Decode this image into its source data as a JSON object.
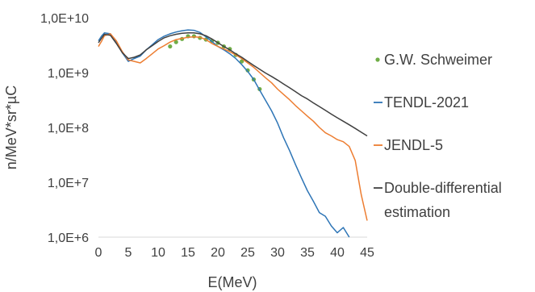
{
  "chart_data": {
    "type": "line",
    "title": "",
    "xlabel": "E(MeV)",
    "ylabel": "n/MeV*sr*µC",
    "xlim": [
      0,
      45
    ],
    "ylim": [
      1000000,
      10000000000
    ],
    "y_scale": "log",
    "grid": false,
    "legend_position": "right",
    "x_ticks": [
      0,
      5,
      10,
      15,
      20,
      25,
      30,
      35,
      40,
      45
    ],
    "x_tick_labels": [
      "0",
      "5",
      "10",
      "15",
      "20",
      "25",
      "30",
      "35",
      "40",
      "45"
    ],
    "y_ticks": [
      1000000,
      10000000,
      100000000,
      1000000000,
      10000000000
    ],
    "y_tick_labels": [
      "1,0E+6",
      "1,0E+7",
      "1,0E+8",
      "1,0E+9",
      "1,0E+10"
    ],
    "series": [
      {
        "name": "G.W. Schweimer",
        "style": "markers",
        "color": "#70ad47",
        "x": [
          12,
          13,
          14,
          15,
          16,
          17,
          18,
          19,
          20,
          21,
          22,
          23,
          24,
          25,
          26,
          27
        ],
        "y": [
          3000000000,
          3600000000,
          4100000000,
          4600000000,
          4600000000,
          4300000000,
          4000000000,
          3800000000,
          3500000000,
          3000000000,
          2700000000,
          2100000000,
          1600000000,
          1100000000,
          750000000,
          500000000
        ]
      },
      {
        "name": "TENDL-2021",
        "style": "line",
        "color": "#2e75b6",
        "x": [
          0,
          0.5,
          1,
          2,
          3,
          4,
          5,
          6,
          7,
          8,
          9,
          10,
          11,
          12,
          13,
          14,
          15,
          16,
          17,
          18,
          19,
          20,
          21,
          22,
          23,
          24,
          25,
          26,
          27,
          28,
          29,
          30,
          31,
          32,
          33,
          34,
          35,
          36,
          37,
          38,
          39,
          40,
          41,
          42
        ],
        "y": [
          3800000000,
          4600000000,
          5300000000,
          5100000000,
          3600000000,
          2300000000,
          1600000000,
          1800000000,
          2000000000,
          2600000000,
          3200000000,
          4000000000,
          4600000000,
          5100000000,
          5500000000,
          5800000000,
          6000000000,
          5900000000,
          5400000000,
          4500000000,
          3700000000,
          3000000000,
          2600000000,
          2200000000,
          1800000000,
          1400000000,
          1050000000,
          750000000,
          480000000,
          310000000,
          200000000,
          120000000,
          65000000,
          38000000,
          21000000,
          12000000,
          7000000,
          4500000,
          2800000,
          2400000,
          1600000,
          1200000,
          1500000,
          1000000
        ]
      },
      {
        "name": "JENDL-5",
        "style": "line",
        "color": "#ed7d31",
        "x": [
          0,
          0.5,
          1,
          2,
          3,
          4,
          5,
          6,
          7,
          8,
          9,
          10,
          11,
          12,
          13,
          14,
          15,
          16,
          17,
          18,
          19,
          20,
          21,
          22,
          23,
          24,
          25,
          26,
          27,
          28,
          29,
          30,
          31,
          32,
          33,
          34,
          35,
          36,
          37,
          38,
          39,
          40,
          41,
          42,
          43,
          44,
          45
        ],
        "y": [
          3000000000,
          3700000000,
          4700000000,
          5100000000,
          3800000000,
          2400000000,
          1700000000,
          1600000000,
          1500000000,
          1800000000,
          2200000000,
          2700000000,
          3100000000,
          3600000000,
          4000000000,
          4200000000,
          4400000000,
          4500000000,
          4400000000,
          4000000000,
          3400000000,
          3000000000,
          2700000000,
          2400000000,
          2100000000,
          1800000000,
          1500000000,
          1250000000,
          1000000000,
          800000000,
          650000000,
          500000000,
          400000000,
          320000000,
          250000000,
          200000000,
          160000000,
          130000000,
          100000000,
          80000000,
          70000000,
          60000000,
          55000000,
          45000000,
          25000000,
          6000000,
          2000000
        ]
      },
      {
        "name": "Double-differential estimation",
        "style": "line",
        "color": "#404040",
        "x": [
          0,
          0.5,
          1,
          2,
          3,
          4,
          5,
          6,
          7,
          8,
          9,
          10,
          11,
          12,
          13,
          14,
          15,
          16,
          17,
          18,
          19,
          20,
          21,
          22,
          23,
          24,
          25,
          26,
          27,
          28,
          29,
          30,
          31,
          32,
          33,
          34,
          35,
          36,
          37,
          38,
          39,
          40,
          41,
          42,
          43,
          44,
          45
        ],
        "y": [
          3500000000,
          4200000000,
          5000000000,
          4800000000,
          3400000000,
          2300000000,
          1800000000,
          1900000000,
          2100000000,
          2600000000,
          3100000000,
          3700000000,
          4300000000,
          4700000000,
          5000000000,
          5200000000,
          5300000000,
          5300000000,
          5100000000,
          4700000000,
          4100000000,
          3500000000,
          3000000000,
          2600000000,
          2200000000,
          1900000000,
          1600000000,
          1350000000,
          1150000000,
          980000000,
          850000000,
          730000000,
          620000000,
          530000000,
          450000000,
          380000000,
          330000000,
          280000000,
          240000000,
          205000000,
          175000000,
          150000000,
          130000000,
          112000000,
          96000000,
          82000000,
          70000000
        ]
      }
    ]
  }
}
